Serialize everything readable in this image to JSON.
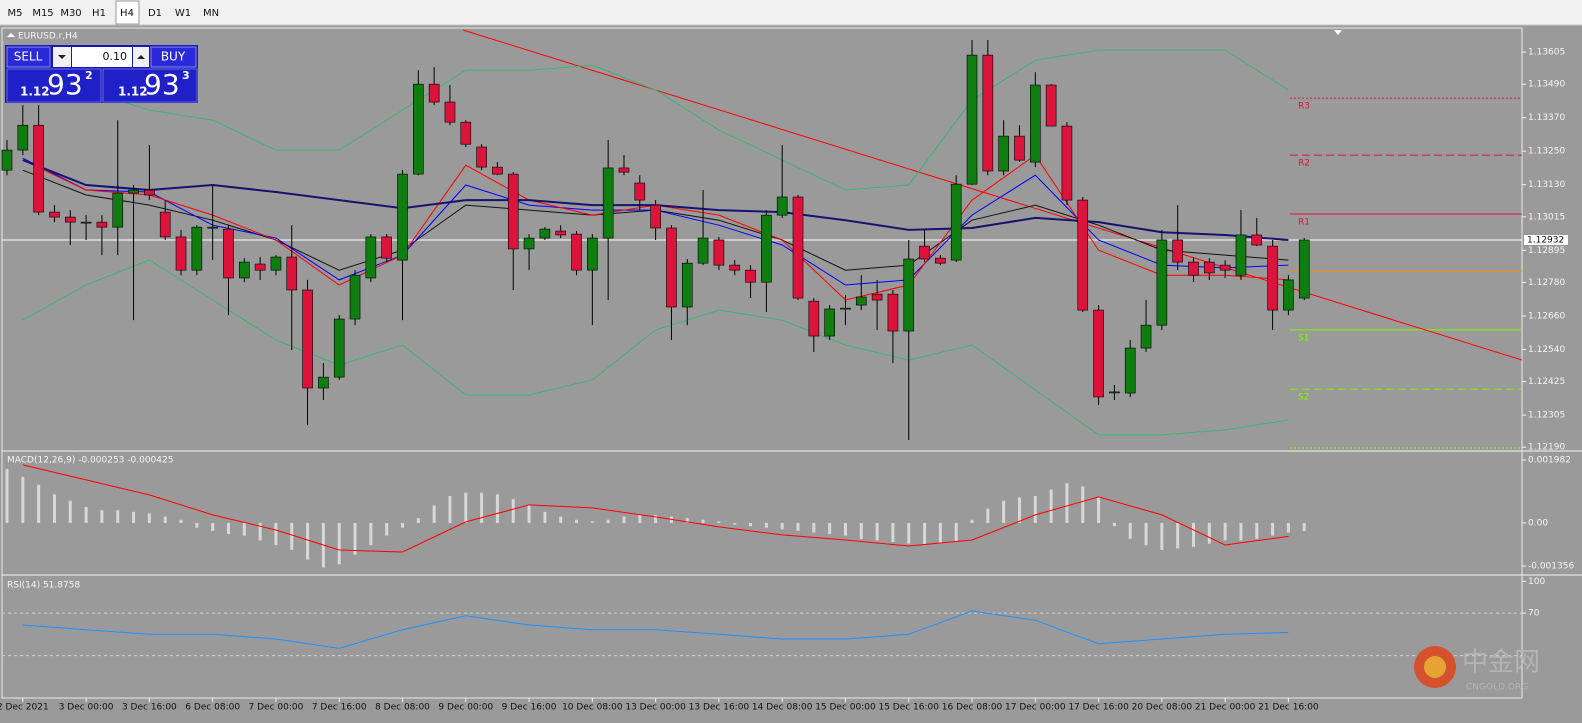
{
  "toolbar": {
    "timeframes": [
      "M5",
      "M15",
      "M30",
      "H1",
      "H4",
      "D1",
      "W1",
      "MN"
    ],
    "selected": 4
  },
  "trade_panel": {
    "sell": "SELL",
    "buy": "BUY",
    "lot": "0.10",
    "bid": {
      "big": "1.12",
      "pips": "93",
      "frac": "2"
    },
    "ask": {
      "big": "1.12",
      "pips": "93",
      "frac": "3"
    }
  },
  "watermark": {
    "name": "中金网",
    "site": "CNGOLD.ORG"
  },
  "chart_data": [
    {
      "type": "candlestick",
      "title": "EURUSD.r,H4",
      "up_color": "#0f7d0f",
      "down_color": "#dc143c",
      "x_labels": [
        "2 Dec 2021",
        "3 Dec 00:00",
        "3 Dec 16:00",
        "6 Dec 08:00",
        "7 Dec 00:00",
        "7 Dec 16:00",
        "8 Dec 08:00",
        "9 Dec 00:00",
        "9 Dec 16:00",
        "10 Dec 08:00",
        "13 Dec 00:00",
        "13 Dec 16:00",
        "14 Dec 08:00",
        "15 Dec 00:00",
        "15 Dec 16:00",
        "16 Dec 08:00",
        "17 Dec 00:00",
        "17 Dec 16:00",
        "20 Dec 08:00",
        "21 Dec 00:00",
        "21 Dec 16:00"
      ],
      "ylim": [
        1.1218,
        1.13684
      ],
      "yticks": [
        1.13605,
        {
          "value": 1.1349,
          "label": "1.13490"
        },
        {
          "value": 1.1337,
          "label": "1.13370"
        },
        {
          "value": 1.1325,
          "label": "1.13250"
        },
        {
          "value": 1.1313,
          "label": "1.13130"
        },
        1.13015,
        1.12895,
        {
          "value": 1.1278,
          "label": "1.12780"
        },
        {
          "value": 1.1266,
          "label": "1.12660"
        },
        {
          "value": 1.1254,
          "label": "1.12540"
        },
        1.12425,
        1.12305,
        {
          "value": 1.1219,
          "label": "1.12190"
        }
      ],
      "ohlc": [
        [
          1.13182,
          1.1329,
          1.13164,
          1.13254
        ],
        [
          1.13254,
          1.13415,
          1.13236,
          1.13343
        ],
        [
          1.13343,
          1.13415,
          1.13021,
          1.13032
        ],
        [
          1.13032,
          1.13057,
          1.12996,
          1.13014
        ],
        [
          1.13014,
          1.13039,
          1.12914,
          1.12996
        ],
        [
          1.12996,
          1.13021,
          1.12932,
          1.12996
        ],
        [
          1.12996,
          1.13021,
          1.12878,
          1.12978
        ],
        [
          1.12978,
          1.13361,
          1.12878,
          1.131
        ],
        [
          1.131,
          1.13129,
          1.12645,
          1.13111
        ],
        [
          1.13111,
          1.13272,
          1.13075,
          1.13093
        ],
        [
          1.13032,
          1.13075,
          1.12932,
          1.12943
        ],
        [
          1.12943,
          1.12968,
          1.12806,
          1.12824
        ],
        [
          1.12824,
          1.12985,
          1.12806,
          1.12978
        ],
        [
          1.12978,
          1.13129,
          1.1286,
          1.12978
        ],
        [
          1.12971,
          1.12985,
          1.12663,
          1.12796
        ],
        [
          1.12796,
          1.12867,
          1.12781,
          1.12853
        ],
        [
          1.12846,
          1.12871,
          1.12789,
          1.12824
        ],
        [
          1.12824,
          1.12878,
          1.12806,
          1.12871
        ],
        [
          1.12871,
          1.12985,
          1.12538,
          1.12753
        ],
        [
          1.12753,
          1.12789,
          1.12269,
          1.12402
        ],
        [
          1.12402,
          1.12491,
          1.12359,
          1.12441
        ],
        [
          1.12441,
          1.12663,
          1.12431,
          1.12649
        ],
        [
          1.12649,
          1.12824,
          1.12627,
          1.12806
        ],
        [
          1.12796,
          1.12953,
          1.12781,
          1.12943
        ],
        [
          1.12943,
          1.12953,
          1.12853,
          1.12867
        ],
        [
          1.1286,
          1.13182,
          1.12645,
          1.13168
        ],
        [
          1.13168,
          1.1354,
          1.13164,
          1.1349
        ],
        [
          1.1349,
          1.13551,
          1.13415,
          1.13426
        ],
        [
          1.13426,
          1.13487,
          1.13343,
          1.13354
        ],
        [
          1.13354,
          1.13361,
          1.13265,
          1.13275
        ],
        [
          1.13265,
          1.13275,
          1.13182,
          1.13193
        ],
        [
          1.13193,
          1.13211,
          1.13164,
          1.13168
        ],
        [
          1.13168,
          1.13175,
          1.12753,
          1.129
        ],
        [
          1.129,
          1.12953,
          1.12824,
          1.12939
        ],
        [
          1.12939,
          1.12978,
          1.12932,
          1.12971
        ],
        [
          1.12964,
          1.12985,
          1.12939,
          1.1295
        ],
        [
          1.12953,
          1.12964,
          1.12806,
          1.12824
        ],
        [
          1.12824,
          1.12953,
          1.12627,
          1.12939
        ],
        [
          1.12939,
          1.1329,
          1.12717,
          1.1319
        ],
        [
          1.1319,
          1.13236,
          1.13164,
          1.13175
        ],
        [
          1.13136,
          1.13164,
          1.13039,
          1.13075
        ],
        [
          1.13057,
          1.13075,
          1.12932,
          1.12975
        ],
        [
          1.12975,
          1.12985,
          1.12574,
          1.12692
        ],
        [
          1.12692,
          1.12864,
          1.12627,
          1.12849
        ],
        [
          1.12849,
          1.13111,
          1.12842,
          1.12939
        ],
        [
          1.12932,
          1.12943,
          1.12824,
          1.12842
        ],
        [
          1.12842,
          1.1286,
          1.12806,
          1.12824
        ],
        [
          1.12824,
          1.12842,
          1.12724,
          1.12781
        ],
        [
          1.12781,
          1.13039,
          1.12674,
          1.13021
        ],
        [
          1.13021,
          1.13272,
          1.13011,
          1.13086
        ],
        [
          1.13086,
          1.13093,
          1.12717,
          1.12724
        ],
        [
          1.12713,
          1.12724,
          1.12531,
          1.12588
        ],
        [
          1.12588,
          1.12699,
          1.12574,
          1.12685
        ],
        [
          1.12688,
          1.12735,
          1.12627,
          1.12688
        ],
        [
          1.12699,
          1.12806,
          1.12681,
          1.12728
        ],
        [
          1.12738,
          1.12789,
          1.1261,
          1.12717
        ],
        [
          1.12738,
          1.12753,
          1.12491,
          1.12606
        ],
        [
          1.12606,
          1.12932,
          1.12216,
          1.12864
        ],
        [
          1.1291,
          1.12968,
          1.12853,
          1.12864
        ],
        [
          1.12867,
          1.12878,
          1.12842,
          1.12849
        ],
        [
          1.1286,
          1.13164,
          1.12853,
          1.13132
        ],
        [
          1.13132,
          1.13648,
          1.13129,
          1.13594
        ],
        [
          1.13594,
          1.13648,
          1.13164,
          1.13179
        ],
        [
          1.13179,
          1.13361,
          1.13164,
          1.13304
        ],
        [
          1.13304,
          1.13343,
          1.13211,
          1.13218
        ],
        [
          1.13211,
          1.13533,
          1.13193,
          1.13487
        ],
        [
          1.13487,
          1.1349,
          1.1334,
          1.1334
        ],
        [
          1.1334,
          1.13354,
          1.13057,
          1.13075
        ],
        [
          1.13075,
          1.13086,
          1.12674,
          1.12681
        ],
        [
          1.12681,
          1.12699,
          1.12341,
          1.1237
        ],
        [
          1.12388,
          1.12413,
          1.12359,
          1.12388
        ],
        [
          1.12384,
          1.12574,
          1.1237,
          1.12545
        ],
        [
          1.12545,
          1.12717,
          1.12531,
          1.12627
        ],
        [
          1.12627,
          1.12968,
          1.1261,
          1.12932
        ],
        [
          1.12932,
          1.13057,
          1.12824,
          1.12853
        ],
        [
          1.12853,
          1.12871,
          1.12781,
          1.12806
        ],
        [
          1.12853,
          1.12867,
          1.12789,
          1.12814
        ],
        [
          1.12842,
          1.1286,
          1.12796,
          1.12824
        ],
        [
          1.12806,
          1.13039,
          1.12789,
          1.1295
        ],
        [
          1.1295,
          1.13011,
          1.1291,
          1.12914
        ],
        [
          1.1291,
          1.12932,
          1.1261,
          1.12681
        ],
        [
          1.12681,
          1.12806,
          1.12663,
          1.12789
        ],
        [
          1.12724,
          1.12939,
          1.12717,
          1.12932
        ]
      ],
      "overlays": [
        {
          "color": "#3cb371",
          "width": 1,
          "values": [
            1.13433,
            1.13469,
            1.13397,
            1.13361,
            1.13254,
            1.13254,
            1.13397,
            1.1354,
            1.1354,
            1.13558,
            1.13469,
            1.13326,
            1.13218,
            1.13111,
            1.13129,
            1.13433,
            1.13576,
            1.13612,
            1.13612,
            1.13612,
            1.13469
          ]
        },
        {
          "color": "#3cb371",
          "width": 1,
          "values": [
            1.12645,
            1.12771,
            1.1286,
            1.12717,
            1.12574,
            1.12484,
            1.12556,
            1.12377,
            1.12377,
            1.12431,
            1.1261,
            1.12681,
            1.12645,
            1.12556,
            1.12502,
            1.12556,
            1.12395,
            1.12234,
            1.12234,
            1.12252,
            1.12287
          ]
        },
        {
          "color": "#111111",
          "width": 1,
          "values": [
            1.13182,
            1.13093,
            1.13057,
            1.13003,
            1.12932,
            1.12824,
            1.12896,
            1.13057,
            1.13039,
            1.13021,
            1.13039,
            1.13003,
            1.12932,
            1.12824,
            1.12842,
            1.13003,
            1.13057,
            1.12985,
            1.12896,
            1.12878,
            1.1286
          ]
        },
        {
          "color": "#0000ff",
          "width": 1,
          "values": [
            1.13225,
            1.13111,
            1.13104,
            1.12985,
            1.12939,
            1.12789,
            1.12878,
            1.13129,
            1.13057,
            1.13039,
            1.13039,
            1.12985,
            1.12914,
            1.12771,
            1.12789,
            1.13021,
            1.13164,
            1.12932,
            1.12842,
            1.12832,
            1.12842
          ]
        },
        {
          "color": "#ff0000",
          "width": 1,
          "values": [
            1.13218,
            1.13111,
            1.13093,
            1.13021,
            1.12932,
            1.12771,
            1.12878,
            1.132,
            1.13075,
            1.13021,
            1.13057,
            1.13021,
            1.12932,
            1.12717,
            1.12771,
            1.13075,
            1.13236,
            1.12896,
            1.12806,
            1.12806,
            1.12789
          ]
        },
        {
          "color": "#141470",
          "width": 2,
          "values": [
            1.13218,
            1.13129,
            1.13111,
            1.13129,
            1.13104,
            1.13075,
            1.13046,
            1.13075,
            1.13075,
            1.13057,
            1.13057,
            1.13039,
            1.13032,
            1.13003,
            1.12968,
            1.12975,
            1.13011,
            1.12996,
            1.1296,
            1.1295,
            1.12932
          ]
        }
      ],
      "pivots": [
        {
          "label": "R3",
          "value": 1.1344,
          "color": "#dc143c",
          "style": "dotted"
        },
        {
          "label": "R2",
          "value": 1.13236,
          "color": "#dc143c",
          "style": "dashed"
        },
        {
          "label": "R1",
          "value": 1.13025,
          "color": "#dc143c",
          "style": "solid"
        },
        {
          "label": "PP",
          "value": 1.12821,
          "color": "#ff8c00",
          "style": "solid"
        },
        {
          "label": "S1",
          "value": 1.1261,
          "color": "#7cfc00",
          "style": "solid"
        },
        {
          "label": "S2",
          "value": 1.12398,
          "color": "#7cfc00",
          "style": "dashed"
        },
        {
          "label": null,
          "value": 1.12187,
          "color": "#7cfc00",
          "style": "dotted"
        }
      ],
      "trendline": {
        "values": [
          1.13684,
          1.12502
        ],
        "color": "#ff0000"
      },
      "current_price": 1.12932
    },
    {
      "type": "macd",
      "title": "MACD(12,26,9) -0.000253 -0.000425",
      "ylim": [
        -0.001576,
        0.002202
      ],
      "yticks": [
        0.001982,
        {
          "value": 0,
          "label": "0.00"
        },
        -0.001356
      ],
      "histogram_color": "#d8d8d8",
      "signal_color": "#ff0000",
      "histogram": [
        0.0017,
        0.00145,
        0.0012,
        0.0009,
        0.0007,
        0.0005,
        0.0004,
        0.0004,
        0.00035,
        0.0003,
        0.0002,
        0.0001,
        -0.00015,
        -0.00025,
        -0.00035,
        -0.0004,
        -0.00055,
        -0.0007,
        -0.00085,
        -0.00115,
        -0.0014,
        -0.0013,
        -0.001,
        -0.0007,
        -0.0004,
        -0.00015,
        0.00015,
        0.00055,
        0.00085,
        0.00095,
        0.00095,
        0.0009,
        0.00075,
        0.00055,
        0.00035,
        0.0002,
        0.0001,
        5e-05,
        0.0001,
        0.0002,
        0.00025,
        0.00025,
        0.0002,
        0.00015,
        0.0001,
        5e-05,
        -5e-05,
        -0.0001,
        -0.00015,
        -0.0002,
        -0.00025,
        -0.0003,
        -0.00035,
        -0.0004,
        -0.0005,
        -0.00055,
        -0.0006,
        -0.00065,
        -0.0007,
        -0.00065,
        -0.0006,
        0.0001,
        0.00045,
        0.0007,
        0.0008,
        0.00085,
        0.00105,
        0.00125,
        0.00115,
        0.0008,
        -0.0001,
        -0.0005,
        -0.0007,
        -0.00085,
        -0.0008,
        -0.00075,
        -0.00065,
        -0.00055,
        -0.00055,
        -0.0005,
        -0.0004,
        -0.0003,
        -0.000253
      ],
      "signal": [
        0.001827,
        0.001355,
        0.000882,
        0.000252,
        -0.000221,
        -0.000851,
        -0.000914,
        3.2e-05,
        0.000567,
        0.000473,
        0.000189,
        -0.000126,
        -0.000378,
        -0.000536,
        -0.000725,
        -0.000536,
        0.000252,
        0.000819,
        0.000252,
        -0.000693,
        -0.000425
      ]
    },
    {
      "type": "rsi",
      "title": "RSI(14) 51.8758",
      "ylim": [
        -10,
        105
      ],
      "yticks": [
        100,
        70
      ],
      "levels": [
        70,
        30
      ],
      "color": "#1e90ff",
      "values": [
        58.8,
        54.4,
        50,
        50,
        45.6,
        36.8,
        54.4,
        67.5,
        58.8,
        54.4,
        54.4,
        50,
        45.6,
        45.6,
        50,
        72,
        63.2,
        41.2,
        45.6,
        50,
        51.8758
      ]
    }
  ]
}
